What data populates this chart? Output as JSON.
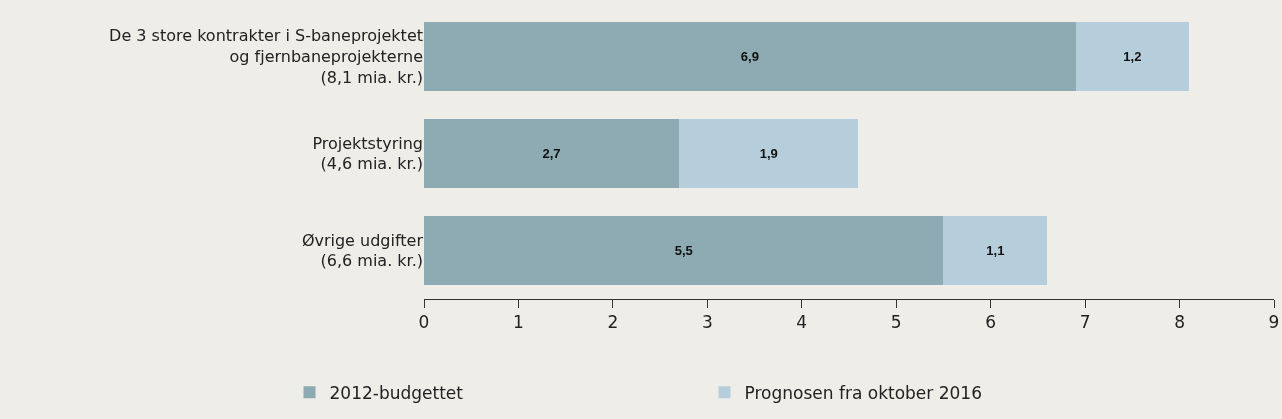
{
  "chart_data": {
    "type": "bar",
    "orientation": "horizontal",
    "stacked": true,
    "categories": [
      "De 3 store kontrakter i S-baneprojektet\nog fjernbaneprojekterne\n(8,1 mia. kr.)",
      "Projektstyring\n(4,6 mia. kr.)",
      "Øvrige udgifter\n(6,6 mia. kr.)"
    ],
    "series": [
      {
        "name": "2012-budgettet",
        "color": "#8eaab2",
        "values": [
          6.9,
          2.7,
          5.5
        ],
        "value_labels": [
          "6,9",
          "2,7",
          "5,5"
        ]
      },
      {
        "name": "Prognosen fra oktober 2016",
        "color": "#b6cedc",
        "values": [
          1.2,
          1.9,
          1.1
        ],
        "value_labels": [
          "1,2",
          "1,9",
          "1,1"
        ]
      }
    ],
    "xlim": [
      0,
      9
    ],
    "xticks": [
      0,
      1,
      2,
      3,
      4,
      5,
      6,
      7,
      8,
      9
    ],
    "grid": false,
    "legend": "bottom"
  }
}
